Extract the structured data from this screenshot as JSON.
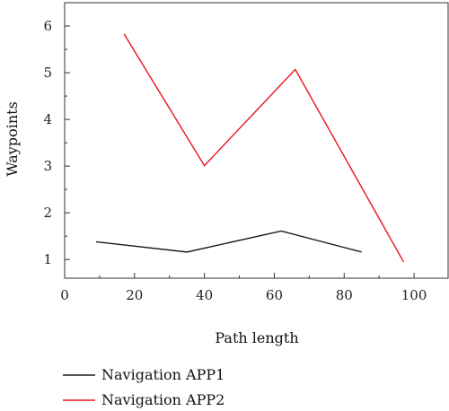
{
  "chart_data": {
    "type": "line",
    "xlabel": "Path length",
    "ylabel": "Waypoints",
    "xlim": [
      0,
      110
    ],
    "ylim": [
      0.6,
      6.5
    ],
    "x_ticks": [
      0,
      20,
      40,
      60,
      80,
      100
    ],
    "y_ticks": [
      1,
      2,
      3,
      4,
      5,
      6
    ],
    "grid": false,
    "legend_position": "bottom-left",
    "series": [
      {
        "name": "Navigation APP1",
        "color": "#1a1a1a",
        "x": [
          9,
          35,
          62,
          85
        ],
        "y": [
          1.38,
          1.16,
          1.61,
          1.16
        ]
      },
      {
        "name": "Navigation APP2",
        "color": "#e8141b",
        "x": [
          17,
          40,
          66,
          97
        ],
        "y": [
          5.83,
          3.01,
          5.07,
          0.95
        ]
      }
    ]
  }
}
